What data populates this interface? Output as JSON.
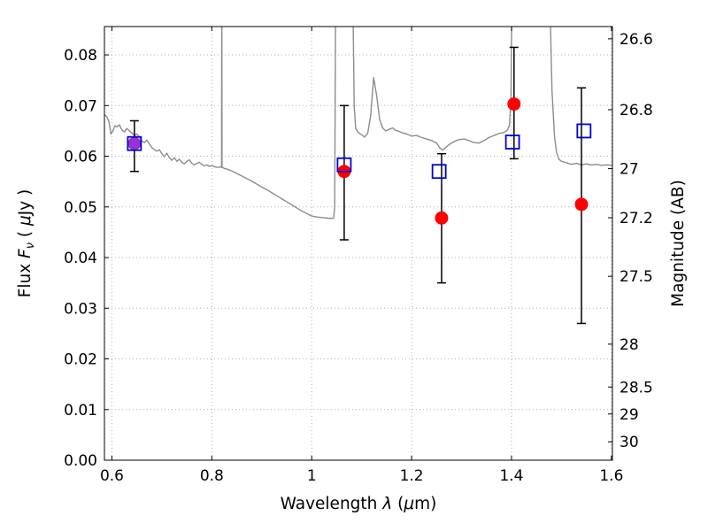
{
  "chart_data": {
    "type": "line+scatter",
    "title": "",
    "xlabel_parts": [
      {
        "t": "Wavelength  ",
        "style": "normal"
      },
      {
        "t": "λ",
        "style": "italic"
      },
      {
        "t": " (",
        "style": "normal"
      },
      {
        "t": "μ",
        "style": "italic"
      },
      {
        "t": "m)",
        "style": "normal"
      }
    ],
    "ylabel_left_parts": [
      {
        "t": "Flux  ",
        "style": "normal"
      },
      {
        "t": "F",
        "style": "italic"
      },
      {
        "t": "ν",
        "style": "italic-sub"
      },
      {
        "t": "  ( ",
        "style": "normal"
      },
      {
        "t": "μ",
        "style": "italic"
      },
      {
        "t": "Jy )",
        "style": "normal"
      }
    ],
    "ylabel_right": "Magnitude (AB)",
    "xlim": [
      0.585,
      1.602
    ],
    "ylim_flux": [
      0,
      0.0856
    ],
    "grid": {
      "show": true,
      "color": "#b0b0b0",
      "style": "dotted"
    },
    "xticks": {
      "values": [
        0.6,
        0.8,
        1.0,
        1.2,
        1.4,
        1.6
      ],
      "labels": [
        "0.6",
        "0.8",
        "1",
        "1.2",
        "1.4",
        "1.6"
      ]
    },
    "yticks_flux": {
      "values": [
        0.0,
        0.01,
        0.02,
        0.03,
        0.04,
        0.05,
        0.06,
        0.07,
        0.08
      ],
      "labels": [
        "0.00",
        "0.01",
        "0.02",
        "0.03",
        "0.04",
        "0.05",
        "0.06",
        "0.07",
        "0.08"
      ]
    },
    "yticks_mag": {
      "values": [
        26.6,
        26.8,
        27.0,
        27.2,
        27.5,
        28.0,
        28.5,
        29.0,
        30.0
      ],
      "labels": [
        "26.6",
        "26.8",
        "27",
        "27.2",
        "27.5",
        "28",
        "28.5",
        "29",
        "30"
      ]
    },
    "spectrum": {
      "name": "model-spectrum",
      "color": "#8c8c8c",
      "points": [
        [
          0.585,
          0.0682
        ],
        [
          0.59,
          0.0678
        ],
        [
          0.594,
          0.0668
        ],
        [
          0.598,
          0.0644
        ],
        [
          0.602,
          0.065
        ],
        [
          0.606,
          0.066
        ],
        [
          0.61,
          0.0658
        ],
        [
          0.615,
          0.0662
        ],
        [
          0.62,
          0.0652
        ],
        [
          0.625,
          0.0648
        ],
        [
          0.63,
          0.0655
        ],
        [
          0.635,
          0.065
        ],
        [
          0.64,
          0.0646
        ],
        [
          0.645,
          0.0641
        ],
        [
          0.65,
          0.0644
        ],
        [
          0.655,
          0.0638
        ],
        [
          0.66,
          0.063
        ],
        [
          0.665,
          0.0627
        ],
        [
          0.67,
          0.0632
        ],
        [
          0.675,
          0.0624
        ],
        [
          0.68,
          0.0617
        ],
        [
          0.685,
          0.0613
        ],
        [
          0.69,
          0.061
        ],
        [
          0.695,
          0.0613
        ],
        [
          0.7,
          0.0605
        ],
        [
          0.705,
          0.0599
        ],
        [
          0.71,
          0.0606
        ],
        [
          0.715,
          0.0597
        ],
        [
          0.72,
          0.0592
        ],
        [
          0.725,
          0.0597
        ],
        [
          0.73,
          0.059
        ],
        [
          0.735,
          0.0594
        ],
        [
          0.74,
          0.0588
        ],
        [
          0.745,
          0.0585
        ],
        [
          0.75,
          0.059
        ],
        [
          0.755,
          0.0593
        ],
        [
          0.76,
          0.0586
        ],
        [
          0.765,
          0.0583
        ],
        [
          0.77,
          0.0586
        ],
        [
          0.775,
          0.0588
        ],
        [
          0.78,
          0.0584
        ],
        [
          0.785,
          0.0581
        ],
        [
          0.79,
          0.0583
        ],
        [
          0.795,
          0.058
        ],
        [
          0.8,
          0.0582
        ],
        [
          0.806,
          0.0579
        ],
        [
          0.812,
          0.0578
        ],
        [
          0.818,
          0.0579
        ],
        [
          0.8195,
          0.0578
        ],
        [
          0.82,
          0.0949
        ],
        [
          0.8205,
          0.0578
        ],
        [
          0.825,
          0.0576
        ],
        [
          0.832,
          0.0574
        ],
        [
          0.84,
          0.0571
        ],
        [
          0.85,
          0.0566
        ],
        [
          0.86,
          0.0561
        ],
        [
          0.87,
          0.0556
        ],
        [
          0.88,
          0.0551
        ],
        [
          0.89,
          0.0545
        ],
        [
          0.9,
          0.0539
        ],
        [
          0.91,
          0.0534
        ],
        [
          0.92,
          0.0528
        ],
        [
          0.93,
          0.0522
        ],
        [
          0.94,
          0.0516
        ],
        [
          0.95,
          0.051
        ],
        [
          0.96,
          0.0504
        ],
        [
          0.97,
          0.0498
        ],
        [
          0.98,
          0.0492
        ],
        [
          0.99,
          0.0487
        ],
        [
          1.0,
          0.0482
        ],
        [
          1.01,
          0.048
        ],
        [
          1.02,
          0.0479
        ],
        [
          1.03,
          0.0478
        ],
        [
          1.04,
          0.0477
        ],
        [
          1.044,
          0.0478
        ],
        [
          1.046,
          0.05
        ],
        [
          1.048,
          0.0949
        ],
        [
          1.082,
          0.0949
        ],
        [
          1.085,
          0.07
        ],
        [
          1.088,
          0.0655
        ],
        [
          1.092,
          0.0648
        ],
        [
          1.1,
          0.0642
        ],
        [
          1.106,
          0.0638
        ],
        [
          1.112,
          0.0645
        ],
        [
          1.118,
          0.068
        ],
        [
          1.124,
          0.0755
        ],
        [
          1.13,
          0.072
        ],
        [
          1.136,
          0.0672
        ],
        [
          1.142,
          0.0656
        ],
        [
          1.148,
          0.065
        ],
        [
          1.155,
          0.0653
        ],
        [
          1.162,
          0.0656
        ],
        [
          1.168,
          0.0651
        ],
        [
          1.175,
          0.0649
        ],
        [
          1.182,
          0.0646
        ],
        [
          1.19,
          0.0644
        ],
        [
          1.2,
          0.064
        ],
        [
          1.21,
          0.0641
        ],
        [
          1.22,
          0.0637
        ],
        [
          1.23,
          0.0634
        ],
        [
          1.24,
          0.0631
        ],
        [
          1.25,
          0.0626
        ],
        [
          1.256,
          0.0617
        ],
        [
          1.262,
          0.0612
        ],
        [
          1.268,
          0.0617
        ],
        [
          1.275,
          0.0623
        ],
        [
          1.285,
          0.0629
        ],
        [
          1.295,
          0.0633
        ],
        [
          1.305,
          0.0634
        ],
        [
          1.315,
          0.0631
        ],
        [
          1.325,
          0.0627
        ],
        [
          1.335,
          0.0626
        ],
        [
          1.345,
          0.0631
        ],
        [
          1.355,
          0.0637
        ],
        [
          1.365,
          0.0641
        ],
        [
          1.375,
          0.0645
        ],
        [
          1.385,
          0.0647
        ],
        [
          1.392,
          0.0652
        ],
        [
          1.396,
          0.0662
        ],
        [
          1.399,
          0.072
        ],
        [
          1.401,
          0.0949
        ],
        [
          1.476,
          0.0949
        ],
        [
          1.481,
          0.073
        ],
        [
          1.486,
          0.064
        ],
        [
          1.49,
          0.0608
        ],
        [
          1.495,
          0.0594
        ],
        [
          1.5,
          0.059
        ],
        [
          1.51,
          0.0587
        ],
        [
          1.52,
          0.0584
        ],
        [
          1.53,
          0.0586
        ],
        [
          1.54,
          0.0583
        ],
        [
          1.55,
          0.0585
        ],
        [
          1.56,
          0.0583
        ],
        [
          1.57,
          0.0584
        ],
        [
          1.58,
          0.0582
        ],
        [
          1.59,
          0.0583
        ],
        [
          1.6,
          0.0582
        ],
        [
          1.602,
          0.0582
        ]
      ]
    },
    "observed_photometry": {
      "name": "observed-photometry",
      "marker": "filled-circle",
      "default_color": "#ff0000",
      "errorbar_color": "#000000",
      "points": [
        {
          "x": 0.645,
          "y": 0.0625,
          "lo": 0.057,
          "hi": 0.067,
          "color": "#9932cc"
        },
        {
          "x": 1.065,
          "y": 0.057,
          "lo": 0.0435,
          "hi": 0.07,
          "color": "#ff0000"
        },
        {
          "x": 1.26,
          "y": 0.0478,
          "lo": 0.035,
          "hi": 0.0605,
          "color": "#ff0000"
        },
        {
          "x": 1.405,
          "y": 0.0703,
          "lo": 0.0595,
          "hi": 0.0815,
          "color": "#ff0000"
        },
        {
          "x": 1.54,
          "y": 0.0505,
          "lo": 0.027,
          "hi": 0.0735,
          "color": "#ff0000"
        }
      ]
    },
    "model_photometry": {
      "name": "model-photometry",
      "marker": "open-square",
      "color": "#0000dd",
      "points": [
        {
          "x": 0.645,
          "y": 0.0625
        },
        {
          "x": 1.065,
          "y": 0.0583
        },
        {
          "x": 1.255,
          "y": 0.057
        },
        {
          "x": 1.402,
          "y": 0.0628
        },
        {
          "x": 1.545,
          "y": 0.065
        }
      ]
    }
  }
}
